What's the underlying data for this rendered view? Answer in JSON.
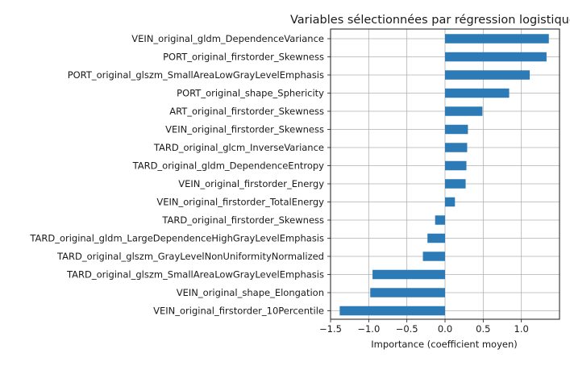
{
  "chart_data": {
    "type": "bar",
    "orientation": "horizontal",
    "title": "Variables sélectionnées par régression logistique",
    "xlabel": "Importance (coefficient moyen)",
    "ylabel": "",
    "xlim": [
      -1.5,
      1.5
    ],
    "xticks": [
      -1.5,
      -1.0,
      -0.5,
      0.0,
      0.5,
      1.0
    ],
    "xtick_labels": [
      "−1.5",
      "−1.0",
      "−0.5",
      "0.0",
      "0.5",
      "1.0"
    ],
    "grid": true,
    "bar_color": "#2c7bb6",
    "categories": [
      "VEIN_original_gldm_DependenceVariance",
      "PORT_original_firstorder_Skewness",
      "PORT_original_glszm_SmallAreaLowGrayLevelEmphasis",
      "PORT_original_shape_Sphericity",
      "ART_original_firstorder_Skewness",
      "VEIN_original_firstorder_Skewness",
      "TARD_original_glcm_InverseVariance",
      "TARD_original_gldm_DependenceEntropy",
      "VEIN_original_firstorder_Energy",
      "VEIN_original_firstorder_TotalEnergy",
      "TARD_original_firstorder_Skewness",
      "TARD_original_gldm_LargeDependenceHighGrayLevelEmphasis",
      "TARD_original_glszm_GrayLevelNonUniformityNormalized",
      "TARD_original_glszm_SmallAreaLowGrayLevelEmphasis",
      "VEIN_original_shape_Elongation",
      "VEIN_original_firstorder_10Percentile"
    ],
    "values": [
      1.36,
      1.33,
      1.11,
      0.84,
      0.49,
      0.3,
      0.29,
      0.28,
      0.27,
      0.13,
      -0.13,
      -0.23,
      -0.29,
      -0.95,
      -0.98,
      -1.38
    ]
  }
}
